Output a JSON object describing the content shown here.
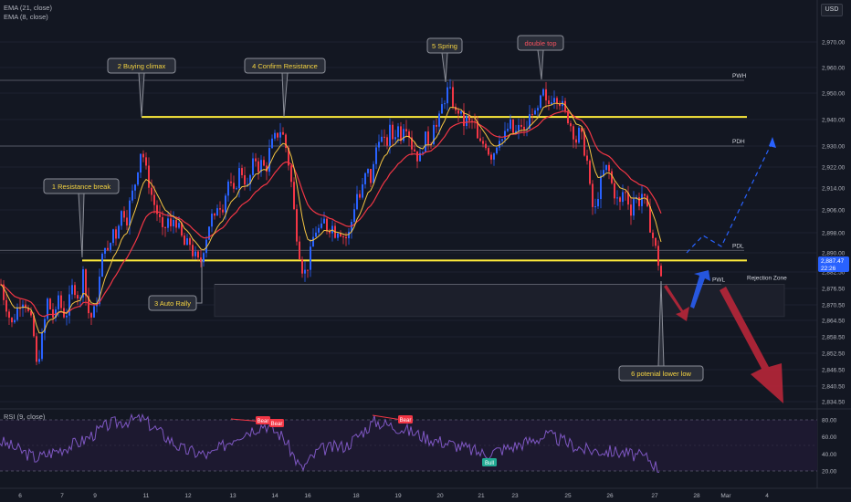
{
  "indicators": {
    "ema21": "EMA (21, close)",
    "ema8": "EMA (8, close)",
    "rsi": "RSI (9, close)"
  },
  "currency": "USD",
  "price_badge": {
    "value": "2,887.47",
    "timer": "22:26"
  },
  "colors": {
    "background": "#131722",
    "candle_up": "#2962ff",
    "candle_down": "#f23645",
    "ema_fast": "#f5c542",
    "ema_slow": "#f23645",
    "level_yellow": "#ffeb3b",
    "rsi": "#7e57c2",
    "callout_text": "#f5d442",
    "double_top_text": "#f7525f",
    "arrow_red": "#c2273a",
    "arrow_blue": "#2962ff"
  },
  "chart_data": {
    "type": "candlestick",
    "y_ticks": [
      "2,970.00",
      "2,960.00",
      "2,950.00",
      "2,940.00",
      "2,930.00",
      "2,922.00",
      "2,914.00",
      "2,906.00",
      "2,898.00",
      "2,890.00",
      "2,882.50",
      "2,876.50",
      "2,870.50",
      "2,864.50",
      "2,858.50",
      "2,852.50",
      "2,846.50",
      "2,840.50",
      "2,834.50"
    ],
    "x_ticks": [
      "6",
      "7",
      "9",
      "11",
      "12",
      "13",
      "14",
      "16",
      "18",
      "19",
      "20",
      "21",
      "23",
      "25",
      "26",
      "27",
      "28",
      "Mar",
      "4"
    ],
    "rsi_ticks": [
      "80.00",
      "60.00",
      "40.00",
      "20.00"
    ],
    "levels": [
      {
        "label": "PWH",
        "price": 2955
      },
      {
        "label": "PDH",
        "price": 2930
      },
      {
        "label": "PDL",
        "price": 2891
      },
      {
        "label": "PWL",
        "price": 2878
      }
    ],
    "yellow_levels": [
      2941,
      2887
    ],
    "rejection_zone": {
      "label": "Rejection Zone",
      "top": 2878,
      "bottom": 2866
    },
    "callouts": [
      {
        "text": "1 Resistance break"
      },
      {
        "text": "2 Buying  climax"
      },
      {
        "text": "3 Auto Rally"
      },
      {
        "text": "4 Confirm Resistance"
      },
      {
        "text": "5 Spring"
      },
      {
        "text": "double top"
      },
      {
        "text": "6 potenial lower low"
      }
    ],
    "rsi_signals": [
      {
        "text": "Bear",
        "type": "bear"
      },
      {
        "text": "Bear",
        "type": "bear"
      },
      {
        "text": "Bear",
        "type": "bear"
      },
      {
        "text": "Bull",
        "type": "bull"
      }
    ],
    "path_points": [
      [
        0,
        2878
      ],
      [
        4,
        2872
      ],
      [
        8,
        2868
      ],
      [
        11,
        2862
      ],
      [
        15,
        2866
      ],
      [
        19,
        2870
      ],
      [
        23,
        2873
      ],
      [
        27,
        2871
      ],
      [
        31,
        2866
      ],
      [
        35,
        2862
      ],
      [
        39,
        2848
      ],
      [
        43,
        2854
      ],
      [
        47,
        2862
      ],
      [
        51,
        2872
      ],
      [
        55,
        2868
      ],
      [
        59,
        2864
      ],
      [
        63,
        2874
      ],
      [
        67,
        2868
      ],
      [
        71,
        2866
      ],
      [
        75,
        2872
      ],
      [
        79,
        2878
      ],
      [
        83,
        2875
      ],
      [
        87,
        2872
      ],
      [
        90,
        2886
      ],
      [
        94,
        2870
      ],
      [
        98,
        2865
      ],
      [
        102,
        2868
      ],
      [
        106,
        2874
      ],
      [
        110,
        2886
      ],
      [
        114,
        2894
      ],
      [
        118,
        2888
      ],
      [
        122,
        2900
      ],
      [
        126,
        2897
      ],
      [
        130,
        2904
      ],
      [
        134,
        2906
      ],
      [
        138,
        2903
      ],
      [
        142,
        2910
      ],
      [
        146,
        2914
      ],
      [
        150,
        2922
      ],
      [
        154,
        2930
      ],
      [
        158,
        2922
      ],
      [
        162,
        2916
      ],
      [
        166,
        2910
      ],
      [
        170,
        2906
      ],
      [
        174,
        2902
      ],
      [
        178,
        2896
      ],
      [
        182,
        2904
      ],
      [
        186,
        2899
      ],
      [
        190,
        2904
      ],
      [
        194,
        2900
      ],
      [
        198,
        2896
      ],
      [
        202,
        2892
      ],
      [
        206,
        2895
      ],
      [
        210,
        2890
      ],
      [
        214,
        2888
      ],
      [
        218,
        2885
      ],
      [
        222,
        2892
      ],
      [
        226,
        2898
      ],
      [
        230,
        2904
      ],
      [
        234,
        2902
      ],
      [
        238,
        2910
      ],
      [
        242,
        2906
      ],
      [
        246,
        2912
      ],
      [
        250,
        2918
      ],
      [
        254,
        2910
      ],
      [
        258,
        2916
      ],
      [
        262,
        2922
      ],
      [
        266,
        2918
      ],
      [
        270,
        2914
      ],
      [
        274,
        2920
      ],
      [
        278,
        2926
      ],
      [
        282,
        2922
      ],
      [
        286,
        2924
      ],
      [
        290,
        2920
      ],
      [
        294,
        2928
      ],
      [
        298,
        2932
      ],
      [
        302,
        2934
      ],
      [
        306,
        2936
      ],
      [
        310,
        2933
      ],
      [
        314,
        2926
      ],
      [
        318,
        2916
      ],
      [
        322,
        2902
      ],
      [
        326,
        2892
      ],
      [
        330,
        2884
      ],
      [
        334,
        2882
      ],
      [
        338,
        2888
      ],
      [
        342,
        2896
      ],
      [
        346,
        2900
      ],
      [
        350,
        2898
      ],
      [
        354,
        2902
      ],
      [
        358,
        2899
      ],
      [
        362,
        2901
      ],
      [
        366,
        2898
      ],
      [
        370,
        2900
      ],
      [
        374,
        2897
      ],
      [
        378,
        2896
      ],
      [
        382,
        2898
      ],
      [
        386,
        2906
      ],
      [
        390,
        2912
      ],
      [
        394,
        2910
      ],
      [
        398,
        2918
      ],
      [
        402,
        2920
      ],
      [
        406,
        2916
      ],
      [
        410,
        2928
      ],
      [
        414,
        2934
      ],
      [
        418,
        2932
      ],
      [
        422,
        2930
      ],
      [
        426,
        2936
      ],
      [
        430,
        2932
      ],
      [
        434,
        2938
      ],
      [
        438,
        2934
      ],
      [
        442,
        2940
      ],
      [
        446,
        2936
      ],
      [
        450,
        2930
      ],
      [
        454,
        2928
      ],
      [
        458,
        2924
      ],
      [
        462,
        2930
      ],
      [
        466,
        2934
      ],
      [
        470,
        2930
      ],
      [
        474,
        2940
      ],
      [
        478,
        2936
      ],
      [
        482,
        2944
      ],
      [
        486,
        2948
      ],
      [
        490,
        2952
      ],
      [
        494,
        2948
      ],
      [
        498,
        2942
      ],
      [
        502,
        2944
      ],
      [
        506,
        2938
      ],
      [
        510,
        2940
      ],
      [
        514,
        2938
      ],
      [
        518,
        2940
      ],
      [
        522,
        2932
      ],
      [
        526,
        2930
      ],
      [
        530,
        2932
      ],
      [
        534,
        2928
      ],
      [
        538,
        2926
      ],
      [
        542,
        2930
      ],
      [
        546,
        2934
      ],
      [
        550,
        2932
      ],
      [
        554,
        2936
      ],
      [
        558,
        2938
      ],
      [
        562,
        2934
      ],
      [
        566,
        2936
      ],
      [
        570,
        2938
      ],
      [
        574,
        2934
      ],
      [
        578,
        2940
      ],
      [
        582,
        2944
      ],
      [
        586,
        2940
      ],
      [
        590,
        2946
      ],
      [
        594,
        2950
      ],
      [
        598,
        2944
      ],
      [
        602,
        2948
      ],
      [
        606,
        2950
      ],
      [
        610,
        2948
      ],
      [
        614,
        2946
      ],
      [
        618,
        2942
      ],
      [
        622,
        2940
      ],
      [
        626,
        2936
      ],
      [
        630,
        2932
      ],
      [
        634,
        2936
      ],
      [
        638,
        2930
      ],
      [
        642,
        2924
      ],
      [
        646,
        2910
      ],
      [
        650,
        2904
      ],
      [
        654,
        2912
      ],
      [
        658,
        2918
      ],
      [
        662,
        2922
      ],
      [
        666,
        2920
      ],
      [
        670,
        2914
      ],
      [
        674,
        2910
      ],
      [
        678,
        2908
      ],
      [
        682,
        2914
      ],
      [
        686,
        2910
      ],
      [
        690,
        2906
      ],
      [
        694,
        2912
      ],
      [
        698,
        2908
      ],
      [
        702,
        2912
      ],
      [
        706,
        2908
      ],
      [
        710,
        2902
      ],
      [
        714,
        2896
      ],
      [
        718,
        2890
      ],
      [
        722,
        2882
      ],
      [
        724,
        2880
      ]
    ]
  }
}
